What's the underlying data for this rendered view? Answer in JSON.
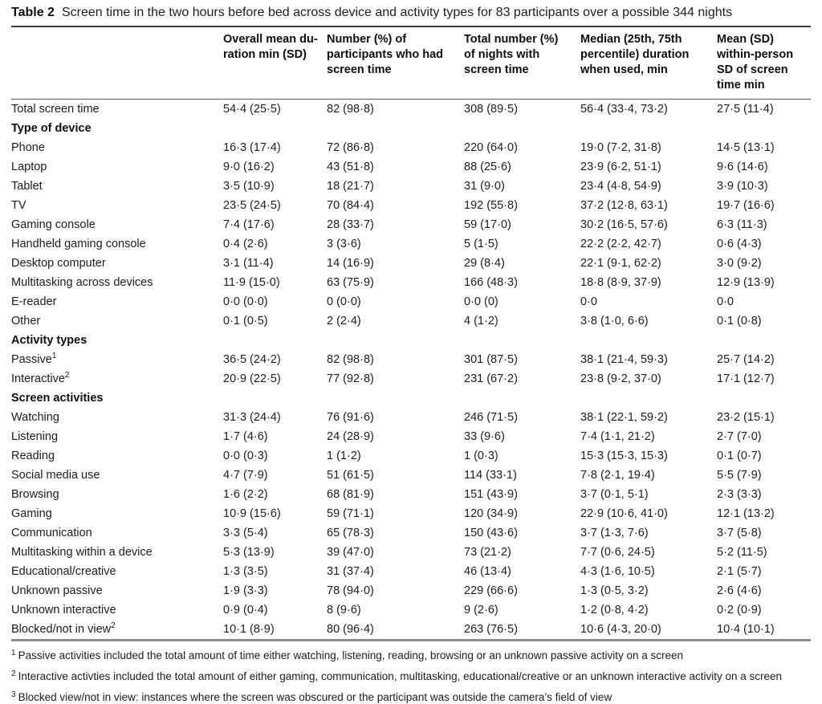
{
  "caption": {
    "label": "Table 2",
    "text": "Screen time in the two hours before bed across device and activity types for 83 participants over a possible 344 nights"
  },
  "table": {
    "columns": [
      "",
      "Overall mean du-\nration min (SD)",
      "Number (%) of\nparticipants who had\nscreen time",
      "Total number (%)\nof nights with\nscreen time",
      "Median (25th, 75th\npercentile) duration\nwhen used, min",
      "Mean (SD)\nwithin-person\nSD of screen\ntime min"
    ],
    "rows": [
      {
        "type": "data",
        "label": "Total screen time",
        "sup": "",
        "values": [
          "54·4 (25·5)",
          "82 (98·8)",
          "308 (89·5)",
          "56·4 (33·4, 73·2)",
          "27·5 (11·4)"
        ]
      },
      {
        "type": "section",
        "label": "Type of device"
      },
      {
        "type": "data",
        "label": "Phone",
        "sup": "",
        "values": [
          "16·3 (17·4)",
          "72 (86·8)",
          "220 (64·0)",
          "19·0 (7·2, 31·8)",
          "14·5 (13·1)"
        ]
      },
      {
        "type": "data",
        "label": "Laptop",
        "sup": "",
        "values": [
          "9·0 (16·2)",
          "43 (51·8)",
          "88 (25·6)",
          "23·9 (6·2, 51·1)",
          "9·6 (14·6)"
        ]
      },
      {
        "type": "data",
        "label": "Tablet",
        "sup": "",
        "values": [
          "3·5 (10·9)",
          "18 (21·7)",
          "31 (9·0)",
          "23·4 (4·8, 54·9)",
          "3·9 (10·3)"
        ]
      },
      {
        "type": "data",
        "label": "TV",
        "sup": "",
        "values": [
          "23·5 (24·5)",
          "70 (84·4)",
          "192 (55·8)",
          "37·2 (12·8, 63·1)",
          "19·7 (16·6)"
        ]
      },
      {
        "type": "data",
        "label": "Gaming console",
        "sup": "",
        "values": [
          "7·4 (17·6)",
          "28 (33·7)",
          "59 (17·0)",
          "30·2 (16·5, 57·6)",
          "6·3 (11·3)"
        ]
      },
      {
        "type": "data",
        "label": "Handheld gaming console",
        "sup": "",
        "values": [
          "0·4 (2·6)",
          "3 (3·6)",
          "5 (1·5)",
          "22·2 (2·2, 42·7)",
          "0·6 (4·3)"
        ]
      },
      {
        "type": "data",
        "label": "Desktop computer",
        "sup": "",
        "values": [
          "3·1 (11·4)",
          "14 (16·9)",
          "29 (8·4)",
          "22·1 (9·1, 62·2)",
          "3·0 (9·2)"
        ]
      },
      {
        "type": "data",
        "label": "Multitasking across devices",
        "sup": "",
        "values": [
          "11·9 (15·0)",
          "63 (75·9)",
          "166 (48·3)",
          "18·8 (8·9, 37·9)",
          "12·9 (13·9)"
        ]
      },
      {
        "type": "data",
        "label": "E-reader",
        "sup": "",
        "values": [
          "0·0 (0·0)",
          "0 (0·0)",
          "0·0 (0)",
          "0·0",
          "0·0"
        ]
      },
      {
        "type": "data",
        "label": "Other",
        "sup": "",
        "values": [
          "0·1 (0·5)",
          "2 (2·4)",
          "4 (1·2)",
          "3·8 (1·0, 6·6)",
          "0·1 (0·8)"
        ]
      },
      {
        "type": "section",
        "label": "Activity types"
      },
      {
        "type": "data",
        "label": "Passive",
        "sup": "1",
        "values": [
          "36·5 (24·2)",
          "82 (98·8)",
          "301 (87·5)",
          "38·1 (21·4, 59·3)",
          "25·7 (14·2)"
        ]
      },
      {
        "type": "data",
        "label": "Interactive",
        "sup": "2",
        "values": [
          "20·9 (22·5)",
          "77 (92·8)",
          "231 (67·2)",
          "23·8 (9·2, 37·0)",
          "17·1 (12·7)"
        ]
      },
      {
        "type": "section",
        "label": "Screen activities"
      },
      {
        "type": "data",
        "label": "Watching",
        "sup": "",
        "values": [
          "31·3 (24·4)",
          "76 (91·6)",
          "246 (71·5)",
          "38·1 (22·1, 59·2)",
          "23·2 (15·1)"
        ]
      },
      {
        "type": "data",
        "label": "Listening",
        "sup": "",
        "values": [
          "1·7 (4·6)",
          "24 (28·9)",
          "33 (9·6)",
          "7·4 (1·1, 21·2)",
          "2·7 (7·0)"
        ]
      },
      {
        "type": "data",
        "label": "Reading",
        "sup": "",
        "values": [
          "0·0 (0·3)",
          "1 (1·2)",
          "1 (0·3)",
          "15·3 (15·3, 15·3)",
          "0·1 (0·7)"
        ]
      },
      {
        "type": "data",
        "label": "Social media use",
        "sup": "",
        "values": [
          "4·7 (7·9)",
          "51 (61·5)",
          "114 (33·1)",
          "7·8 (2·1, 19·4)",
          "5·5 (7·9)"
        ]
      },
      {
        "type": "data",
        "label": "Browsing",
        "sup": "",
        "values": [
          "1·6 (2·2)",
          "68 (81·9)",
          "151 (43·9)",
          "3·7 (0·1, 5·1)",
          "2·3 (3·3)"
        ]
      },
      {
        "type": "data",
        "label": "Gaming",
        "sup": "",
        "values": [
          "10·9 (15·6)",
          "59 (71·1)",
          "120 (34·9)",
          "22·9 (10·6, 41·0)",
          "12·1 (13·2)"
        ]
      },
      {
        "type": "data",
        "label": "Communication",
        "sup": "",
        "values": [
          "3·3 (5·4)",
          "65 (78·3)",
          "150 (43·6)",
          "3·7 (1·3, 7·6)",
          "3·7 (5·8)"
        ]
      },
      {
        "type": "data",
        "label": "Multitasking within a device",
        "sup": "",
        "values": [
          "5·3 (13·9)",
          "39 (47·0)",
          "73 (21·2)",
          "7·7 (0·6, 24·5)",
          "5·2 (11·5)"
        ]
      },
      {
        "type": "data",
        "label": "Educational/creative",
        "sup": "",
        "values": [
          "1·3 (3·5)",
          "31 (37·4)",
          "46 (13·4)",
          "4·3 (1·6, 10·5)",
          "2·1 (5·7)"
        ]
      },
      {
        "type": "data",
        "label": "Unknown passive",
        "sup": "",
        "values": [
          "1·9 (3·3)",
          "78 (94·0)",
          "229 (66·6)",
          "1·3 (0·5, 3·2)",
          "2·6 (4·6)"
        ]
      },
      {
        "type": "data",
        "label": "Unknown interactive",
        "sup": "",
        "values": [
          "0·9 (0·4)",
          "8 (9·6)",
          "9 (2·6)",
          "1·2 (0·8, 4·2)",
          "0·2 (0·9)"
        ]
      },
      {
        "type": "data",
        "label": "Blocked/not in view",
        "sup": "2",
        "values": [
          "10·1 (8·9)",
          "80 (96·4)",
          "263 (76·5)",
          "10·6 (4·3, 20·0)",
          "10·4 (10·1)"
        ]
      }
    ]
  },
  "footnotes": [
    {
      "sup": "1",
      "text": "Passive activities included the total amount of time either watching, listening, reading, browsing or an unknown passive activity on a screen"
    },
    {
      "sup": "2",
      "text": "Interactive activties included the total amount of either gaming, communication, multitasking, educational/creative or an unknown interactive activity on a screen"
    },
    {
      "sup": "3",
      "text": "Blocked view/not in view: instances where the screen was obscured or the participant was outside the camera’s field of view"
    }
  ]
}
